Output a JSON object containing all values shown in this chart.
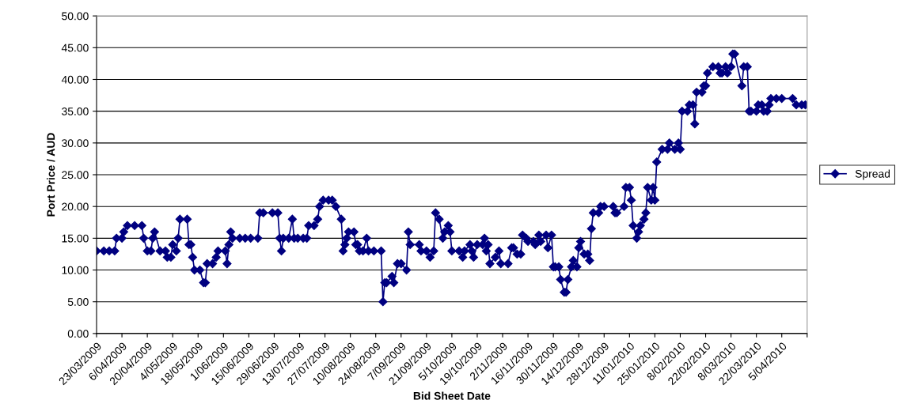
{
  "chart_data": {
    "type": "line",
    "xlabel": "Bid Sheet Date",
    "ylabel": "Port Price / AUD",
    "x": [
      "2009-03-23",
      "2009-03-27",
      "2009-03-30",
      "2009-04-02",
      "2009-04-03",
      "2009-04-06",
      "2009-04-07",
      "2009-04-09",
      "2009-04-13",
      "2009-04-17",
      "2009-04-18",
      "2009-04-20",
      "2009-04-22",
      "2009-04-23",
      "2009-04-24",
      "2009-04-27",
      "2009-04-30",
      "2009-05-01",
      "2009-05-03",
      "2009-05-04",
      "2009-05-06",
      "2009-05-07",
      "2009-05-08",
      "2009-05-12",
      "2009-05-13",
      "2009-05-14",
      "2009-05-15",
      "2009-05-16",
      "2009-05-19",
      "2009-05-21",
      "2009-05-22",
      "2009-05-23",
      "2009-05-26",
      "2009-05-28",
      "2009-05-29",
      "2009-06-02",
      "2009-06-03",
      "2009-06-04",
      "2009-06-05",
      "2009-06-06",
      "2009-06-10",
      "2009-06-13",
      "2009-06-16",
      "2009-06-20",
      "2009-06-21",
      "2009-06-23",
      "2009-06-28",
      "2009-07-01",
      "2009-07-02",
      "2009-07-03",
      "2009-07-04",
      "2009-07-07",
      "2009-07-09",
      "2009-07-10",
      "2009-07-12",
      "2009-07-15",
      "2009-07-17",
      "2009-07-18",
      "2009-07-21",
      "2009-07-23",
      "2009-07-24",
      "2009-07-26",
      "2009-07-29",
      "2009-07-31",
      "2009-08-02",
      "2009-08-05",
      "2009-08-06",
      "2009-08-07",
      "2009-08-08",
      "2009-08-09",
      "2009-08-12",
      "2009-08-13",
      "2009-08-14",
      "2009-08-15",
      "2009-08-17",
      "2009-08-19",
      "2009-08-20",
      "2009-08-23",
      "2009-08-27",
      "2009-08-28",
      "2009-08-29",
      "2009-08-30",
      "2009-09-02",
      "2009-09-03",
      "2009-09-05",
      "2009-09-07",
      "2009-09-10",
      "2009-09-11",
      "2009-09-12",
      "2009-09-17",
      "2009-09-18",
      "2009-09-21",
      "2009-09-23",
      "2009-09-25",
      "2009-09-26",
      "2009-09-28",
      "2009-09-30",
      "2009-10-01",
      "2009-10-03",
      "2009-10-04",
      "2009-10-05",
      "2009-10-09",
      "2009-10-11",
      "2009-10-12",
      "2009-10-15",
      "2009-10-16",
      "2009-10-17",
      "2009-10-19",
      "2009-10-22",
      "2009-10-23",
      "2009-10-24",
      "2009-10-25",
      "2009-10-26",
      "2009-10-29",
      "2009-10-31",
      "2009-11-01",
      "2009-11-05",
      "2009-11-07",
      "2009-11-08",
      "2009-11-10",
      "2009-11-12",
      "2009-11-13",
      "2009-11-15",
      "2009-11-16",
      "2009-11-19",
      "2009-11-20",
      "2009-11-22",
      "2009-11-23",
      "2009-11-26",
      "2009-11-27",
      "2009-11-29",
      "2009-11-30",
      "2009-12-01",
      "2009-12-03",
      "2009-12-04",
      "2009-12-06",
      "2009-12-07",
      "2009-12-08",
      "2009-12-10",
      "2009-12-11",
      "2009-12-13",
      "2009-12-14",
      "2009-12-15",
      "2009-12-17",
      "2009-12-19",
      "2009-12-20",
      "2009-12-21",
      "2009-12-22",
      "2009-12-25",
      "2009-12-26",
      "2009-12-28",
      "2010-01-02",
      "2010-01-03",
      "2010-01-04",
      "2010-01-08",
      "2010-01-09",
      "2010-01-11",
      "2010-01-12",
      "2010-01-13",
      "2010-01-15",
      "2010-01-16",
      "2010-01-17",
      "2010-01-19",
      "2010-01-20",
      "2010-01-21",
      "2010-01-23",
      "2010-01-24",
      "2010-01-25",
      "2010-01-26",
      "2010-01-29",
      "2010-02-01",
      "2010-02-02",
      "2010-02-05",
      "2010-02-07",
      "2010-02-08",
      "2010-02-09",
      "2010-02-12",
      "2010-02-13",
      "2010-02-15",
      "2010-02-16",
      "2010-02-17",
      "2010-02-20",
      "2010-02-21",
      "2010-02-22",
      "2010-02-23",
      "2010-02-26",
      "2010-03-01",
      "2010-03-02",
      "2010-03-03",
      "2010-03-05",
      "2010-03-06",
      "2010-03-08",
      "2010-03-09",
      "2010-03-10",
      "2010-03-14",
      "2010-03-15",
      "2010-03-17",
      "2010-03-18",
      "2010-03-19",
      "2010-03-22",
      "2010-03-23",
      "2010-03-25",
      "2010-03-26",
      "2010-03-28",
      "2010-03-29",
      "2010-03-30",
      "2010-04-02",
      "2010-04-05",
      "2010-04-11",
      "2010-04-13",
      "2010-04-16",
      "2010-04-18"
    ],
    "series": [
      {
        "name": "Spread",
        "color": "#000080",
        "values": [
          13,
          13,
          13,
          13,
          15,
          15,
          16,
          17,
          17,
          17,
          15,
          13,
          13,
          15,
          16,
          13,
          13,
          12,
          12,
          14,
          13,
          15,
          18,
          18,
          14,
          14,
          12,
          10,
          10,
          8,
          8,
          11,
          11,
          12,
          13,
          13,
          11,
          14,
          16,
          15,
          15,
          15,
          15,
          15,
          19,
          19,
          19,
          19,
          15,
          13,
          15,
          15,
          18,
          15,
          15,
          15,
          15,
          17,
          17,
          18,
          20,
          21,
          21,
          21,
          20,
          18,
          13,
          14,
          15,
          16,
          16,
          14,
          14,
          13,
          13,
          15,
          13,
          13,
          13,
          5,
          8,
          8,
          9,
          8,
          11,
          11,
          10,
          16,
          14,
          14,
          13,
          13,
          12,
          13,
          19,
          18,
          15,
          16,
          17,
          16,
          13,
          13,
          12,
          13,
          14,
          13,
          12,
          14,
          14,
          15,
          13,
          14,
          11,
          12,
          13,
          11,
          11,
          13.5,
          13.5,
          12.5,
          12.5,
          15.5,
          15,
          14.5,
          14.5,
          14,
          15.5,
          14.5,
          15.5,
          13.5,
          15.5,
          10.5,
          10.5,
          10.5,
          8.5,
          6.5,
          6.5,
          8.5,
          10.5,
          11.5,
          10.5,
          13.5,
          14.5,
          12.5,
          12.5,
          11.5,
          16.5,
          19,
          19,
          20,
          20,
          20,
          19,
          19,
          20,
          23,
          23,
          21,
          17,
          15,
          16,
          17,
          18,
          19,
          23,
          21,
          23,
          21,
          27,
          29,
          29,
          30,
          29,
          30,
          29,
          35,
          35,
          36,
          36,
          33,
          38,
          38,
          39,
          39,
          41,
          42,
          42,
          41,
          41,
          42,
          41,
          42,
          44,
          44,
          39,
          42,
          42,
          35,
          35,
          35,
          36,
          36,
          35,
          35,
          36,
          37,
          37,
          37,
          37,
          36,
          36,
          36
        ]
      }
    ],
    "xlim": [
      "2009-03-23",
      "2010-04-19"
    ],
    "xticks": [
      {
        "value": "2009-03-23",
        "label": "23/03/2009"
      },
      {
        "value": "2009-04-06",
        "label": "6/04/2009"
      },
      {
        "value": "2009-04-20",
        "label": "20/04/2009"
      },
      {
        "value": "2009-05-04",
        "label": "4/05/2009"
      },
      {
        "value": "2009-05-18",
        "label": "18/05/2009"
      },
      {
        "value": "2009-06-01",
        "label": "1/06/2009"
      },
      {
        "value": "2009-06-15",
        "label": "15/06/2009"
      },
      {
        "value": "2009-06-29",
        "label": "29/06/2009"
      },
      {
        "value": "2009-07-13",
        "label": "13/07/2009"
      },
      {
        "value": "2009-07-27",
        "label": "27/07/2009"
      },
      {
        "value": "2009-08-10",
        "label": "10/08/2009"
      },
      {
        "value": "2009-08-24",
        "label": "24/08/2009"
      },
      {
        "value": "2009-09-07",
        "label": "7/09/2009"
      },
      {
        "value": "2009-09-21",
        "label": "21/09/2009"
      },
      {
        "value": "2009-10-05",
        "label": "5/10/2009"
      },
      {
        "value": "2009-10-19",
        "label": "19/10/2009"
      },
      {
        "value": "2009-11-02",
        "label": "2/11/2009"
      },
      {
        "value": "2009-11-16",
        "label": "16/11/2009"
      },
      {
        "value": "2009-11-30",
        "label": "30/11/2009"
      },
      {
        "value": "2009-12-14",
        "label": "14/12/2009"
      },
      {
        "value": "2009-12-28",
        "label": "28/12/2009"
      },
      {
        "value": "2010-01-11",
        "label": "11/01/2010"
      },
      {
        "value": "2010-01-25",
        "label": "25/01/2010"
      },
      {
        "value": "2010-02-08",
        "label": "8/02/2010"
      },
      {
        "value": "2010-02-22",
        "label": "22/02/2010"
      },
      {
        "value": "2010-03-08",
        "label": "8/03/2010"
      },
      {
        "value": "2010-03-22",
        "label": "22/03/2010"
      },
      {
        "value": "2010-04-05",
        "label": "5/04/2010"
      },
      {
        "value": "2010-04-19",
        "label": null
      }
    ],
    "ylim": [
      0,
      50
    ],
    "yticks": [
      {
        "value": 0,
        "label": "0.00"
      },
      {
        "value": 5,
        "label": "5.00"
      },
      {
        "value": 10,
        "label": "10.00"
      },
      {
        "value": 15,
        "label": "15.00"
      },
      {
        "value": 20,
        "label": "20.00"
      },
      {
        "value": 25,
        "label": "25.00"
      },
      {
        "value": 30,
        "label": "30.00"
      },
      {
        "value": 35,
        "label": "35.00"
      },
      {
        "value": 40,
        "label": "40.00"
      },
      {
        "value": 45,
        "label": "45.00"
      },
      {
        "value": 50,
        "label": "50.00"
      }
    ],
    "grid": "y",
    "legend": "right",
    "marker": "diamond",
    "line_style": "solid"
  }
}
